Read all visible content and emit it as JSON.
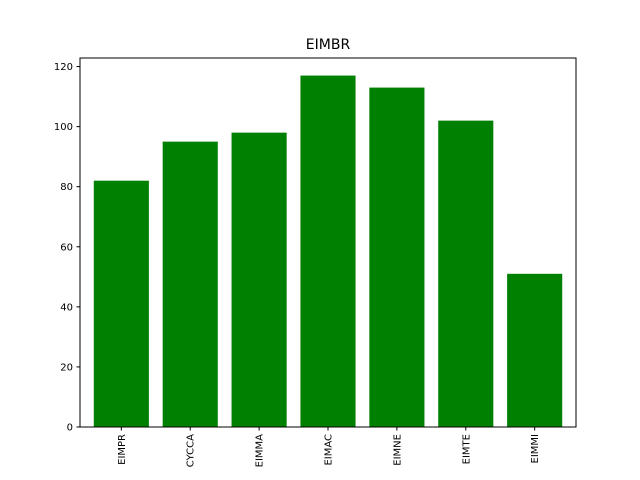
{
  "chart_data": {
    "type": "bar",
    "title": "EIMBR",
    "xlabel": "",
    "ylabel": "",
    "categories": [
      "EIMPR",
      "CYCCA",
      "EIMMA",
      "EIMAC",
      "EIMNE",
      "EIMTE",
      "EIMMI"
    ],
    "values": [
      82,
      95,
      98,
      117,
      113,
      102,
      51
    ],
    "yticks": [
      0,
      20,
      40,
      60,
      80,
      100,
      120
    ],
    "ylim": [
      0,
      122.85
    ],
    "bar_color": "#008000",
    "grid": false,
    "legend": "none"
  }
}
